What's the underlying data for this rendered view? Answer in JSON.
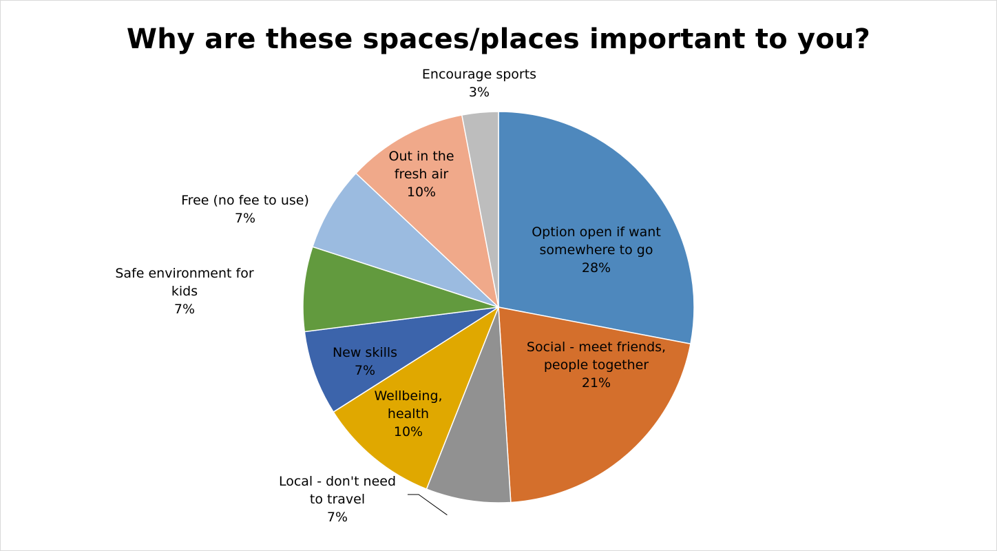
{
  "chart_data": {
    "type": "pie",
    "title": "Why are these spaces/places important to you?",
    "slices": [
      {
        "label": "Option open if want somewhere to go",
        "label_lines": [
          "Option open if want",
          "somewhere to go"
        ],
        "value": 28,
        "percent_label": "28%",
        "color": "#4e88bd"
      },
      {
        "label": "Social - meet friends, people together",
        "label_lines": [
          "Social - meet friends,",
          "people together"
        ],
        "value": 21,
        "percent_label": "21%",
        "color": "#d46f2c"
      },
      {
        "label": "Local - don't need to travel",
        "label_lines": [
          "Local - don't need",
          "to travel"
        ],
        "value": 7,
        "percent_label": "7%",
        "color": "#919191"
      },
      {
        "label": "Wellbeing, health",
        "label_lines": [
          "Wellbeing,",
          "health"
        ],
        "value": 10,
        "percent_label": "10%",
        "color": "#e0a800"
      },
      {
        "label": "New skills",
        "label_lines": [
          "New skills"
        ],
        "value": 7,
        "percent_label": "7%",
        "color": "#3c64ab"
      },
      {
        "label": "Safe environment for kids",
        "label_lines": [
          "Safe environment for",
          "kids"
        ],
        "value": 7,
        "percent_label": "7%",
        "color": "#629a3e"
      },
      {
        "label": "Free (no fee to use)",
        "label_lines": [
          "Free (no fee to use)"
        ],
        "value": 7,
        "percent_label": "7%",
        "color": "#9bbbe0"
      },
      {
        "label": "Out in the fresh air",
        "label_lines": [
          "Out in the",
          "fresh air"
        ],
        "value": 10,
        "percent_label": "10%",
        "color": "#f0a98a"
      },
      {
        "label": "Encourage sports",
        "label_lines": [
          "Encourage sports"
        ],
        "value": 3,
        "percent_label": "3%",
        "color": "#bdbdbd"
      }
    ],
    "legend": "none"
  }
}
